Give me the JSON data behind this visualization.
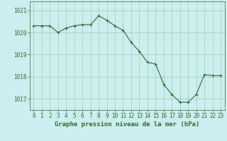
{
  "x": [
    0,
    1,
    2,
    3,
    4,
    5,
    6,
    7,
    8,
    9,
    10,
    11,
    12,
    13,
    14,
    15,
    16,
    17,
    18,
    19,
    20,
    21,
    22,
    23
  ],
  "y": [
    1020.3,
    1020.3,
    1020.3,
    1020.0,
    1020.2,
    1020.3,
    1020.35,
    1020.35,
    1020.75,
    1020.55,
    1020.3,
    1020.1,
    1019.55,
    1019.15,
    1018.65,
    1018.58,
    1017.65,
    1017.2,
    1016.85,
    1016.85,
    1017.2,
    1018.1,
    1018.05,
    1018.05
  ],
  "line_color": "#2d6a2d",
  "marker": "+",
  "marker_size": 3,
  "marker_lw": 0.8,
  "line_width": 0.8,
  "bg_color": "#cceeee",
  "grid_color": "#99ccbb",
  "ylabel_ticks": [
    1017,
    1018,
    1019,
    1020,
    1021
  ],
  "xlabel_label": "Graphe pression niveau de la mer (hPa)",
  "xlim": [
    -0.5,
    23.5
  ],
  "ylim": [
    1016.5,
    1021.4
  ],
  "xticks": [
    0,
    1,
    2,
    3,
    4,
    5,
    6,
    7,
    8,
    9,
    10,
    11,
    12,
    13,
    14,
    15,
    16,
    17,
    18,
    19,
    20,
    21,
    22,
    23
  ],
  "tick_fontsize": 5.5,
  "xlabel_fontsize": 6.5,
  "ylabel_fontsize": 5.5
}
